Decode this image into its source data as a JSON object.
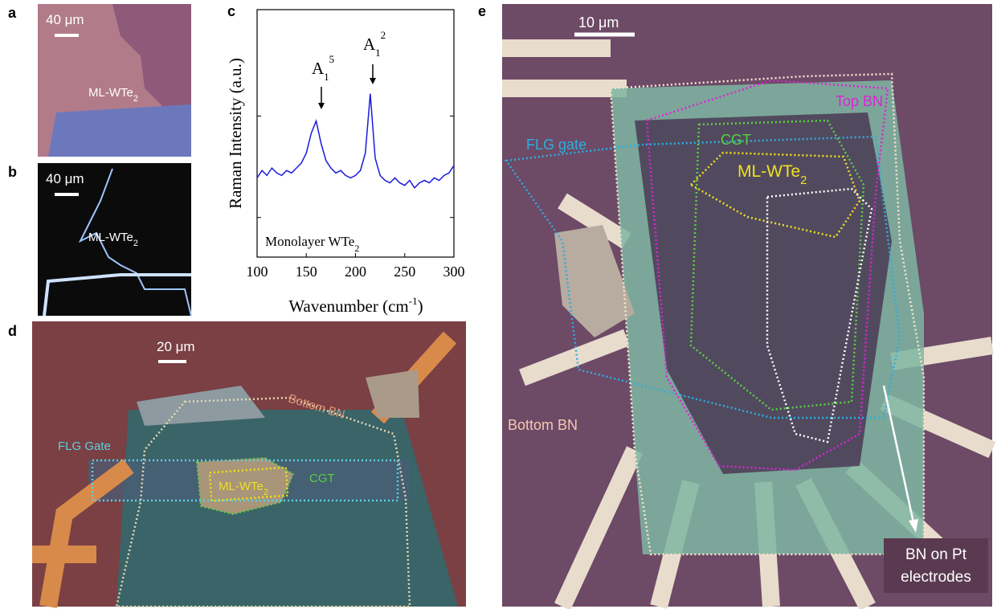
{
  "panels": {
    "a": {
      "label": "a",
      "scale": "40 μm",
      "sample": {
        "base": "ML-WTe",
        "sub": "2"
      }
    },
    "b": {
      "label": "b",
      "scale": "40 μm",
      "sample": {
        "base": "ML-WTe",
        "sub": "2"
      }
    },
    "c": {
      "label": "c"
    },
    "d": {
      "label": "d",
      "scale": "20 μm",
      "bottom": "Bottom BN",
      "gate": "FLG Gate",
      "cgt": "CGT",
      "sample": {
        "base": "ML-WTe",
        "sub": "2"
      }
    },
    "e": {
      "label": "e",
      "scale": "10 μm",
      "top": "Top BN",
      "cgt": "CGT",
      "gate": "FLG gate",
      "sample": {
        "base": "ML-WTe",
        "sub": "2"
      },
      "bottom": "Bottom BN",
      "note": [
        "BN  on Pt",
        "electrodes"
      ]
    }
  },
  "chart_data": {
    "type": "line",
    "color": "#1a1adc",
    "ylabel": "Raman Intensity (a.u.)",
    "xlabel": {
      "base": "Wavenumber (cm",
      "sup": "-1",
      "end": ")"
    },
    "legend_text": {
      "base": "Monolayer WTe",
      "sub": "2"
    },
    "peaks": [
      {
        "base": "A",
        "sub": "1",
        "sup": "5"
      },
      {
        "base": "A",
        "sub": "1",
        "sup": "2"
      }
    ],
    "x": [
      100,
      105,
      110,
      115,
      120,
      125,
      130,
      135,
      140,
      145,
      150,
      155,
      160,
      165,
      170,
      175,
      180,
      185,
      190,
      195,
      200,
      205,
      210,
      215,
      220,
      225,
      230,
      235,
      240,
      245,
      250,
      255,
      260,
      265,
      270,
      275,
      280,
      285,
      290,
      295,
      300
    ],
    "values": [
      3.2,
      3.5,
      3.3,
      3.6,
      3.4,
      3.3,
      3.5,
      3.4,
      3.6,
      3.8,
      4.2,
      5.0,
      5.5,
      4.6,
      3.9,
      3.6,
      3.4,
      3.5,
      3.3,
      3.2,
      3.3,
      3.5,
      4.2,
      6.6,
      4.0,
      3.3,
      3.1,
      3.0,
      3.2,
      3.0,
      2.9,
      3.1,
      2.8,
      3.0,
      3.1,
      3.0,
      3.2,
      3.1,
      3.3,
      3.4,
      3.7
    ],
    "xlim": [
      100,
      300
    ],
    "xticks": [
      100,
      150,
      200,
      250,
      300
    ],
    "ylim": [
      0,
      10
    ]
  }
}
